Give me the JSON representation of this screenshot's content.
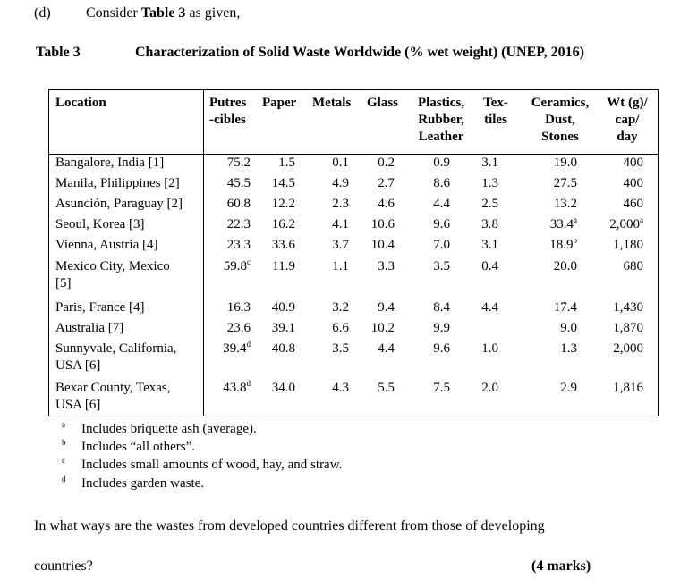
{
  "question": {
    "label": "(d)",
    "intro_prefix": "Consider ",
    "intro_bold": "Table 3",
    "intro_suffix": " as given,"
  },
  "table": {
    "label": "Table 3",
    "title": "Characterization of Solid Waste Worldwide (% wet weight) (UNEP, 2016)",
    "headers": {
      "location": "Location",
      "putres_1": "Putres",
      "putres_2": "-cibles",
      "paper": "Paper",
      "metals": "Metals",
      "glass": "Glass",
      "plastics_1": "Plastics,",
      "plastics_2": "Rubber,",
      "plastics_3": "Leather",
      "textiles_1": "Tex-",
      "textiles_2": "tiles",
      "ceramics_1": "Ceramics,",
      "ceramics_2": "Dust,",
      "ceramics_3": "Stones",
      "wt_1": "Wt (g)/",
      "wt_2": "cap/",
      "wt_3": "day"
    },
    "rows": [
      {
        "loc1": "Bangalore, India [1]",
        "loc2": "",
        "putres": "75.2",
        "putres_note": "",
        "paper": "1.5",
        "metals": "0.1",
        "glass": "0.2",
        "plastics": "0.9",
        "textiles": "3.1",
        "ceramics": "19.0",
        "ceramics_note": "",
        "wt": "400",
        "wt_note": ""
      },
      {
        "loc1": "Manila, Philippines [2]",
        "loc2": "",
        "putres": "45.5",
        "putres_note": "",
        "paper": "14.5",
        "metals": "4.9",
        "glass": "2.7",
        "plastics": "8.6",
        "textiles": "1.3",
        "ceramics": "27.5",
        "ceramics_note": "",
        "wt": "400",
        "wt_note": ""
      },
      {
        "loc1": "Asunción, Paraguay [2]",
        "loc2": "",
        "putres": "60.8",
        "putres_note": "",
        "paper": "12.2",
        "metals": "2.3",
        "glass": "4.6",
        "plastics": "4.4",
        "textiles": "2.5",
        "ceramics": "13.2",
        "ceramics_note": "",
        "wt": "460",
        "wt_note": ""
      },
      {
        "loc1": "Seoul, Korea [3]",
        "loc2": "",
        "putres": "22.3",
        "putres_note": "",
        "paper": "16.2",
        "metals": "4.1",
        "glass": "10.6",
        "plastics": "9.6",
        "textiles": "3.8",
        "ceramics": "33.4",
        "ceramics_note": "a",
        "wt": "2,000",
        "wt_note": "a"
      },
      {
        "loc1": "Vienna, Austria [4]",
        "loc2": "",
        "putres": "23.3",
        "putres_note": "",
        "paper": "33.6",
        "metals": "3.7",
        "glass": "10.4",
        "plastics": "7.0",
        "textiles": "3.1",
        "ceramics": "18.9",
        "ceramics_note": "b",
        "wt": "1,180",
        "wt_note": ""
      },
      {
        "loc1": "Mexico City, Mexico",
        "loc2": "[5]",
        "putres": "59.8",
        "putres_note": "c",
        "paper": "11.9",
        "metals": "1.1",
        "glass": "3.3",
        "plastics": "3.5",
        "textiles": "0.4",
        "ceramics": "20.0",
        "ceramics_note": "",
        "wt": "680",
        "wt_note": ""
      },
      {
        "loc1": "Paris, France [4]",
        "loc2": "",
        "putres": "16.3",
        "putres_note": "",
        "paper": "40.9",
        "metals": "3.2",
        "glass": "9.4",
        "plastics": "8.4",
        "textiles": "4.4",
        "ceramics": "17.4",
        "ceramics_note": "",
        "wt": "1,430",
        "wt_note": ""
      },
      {
        "loc1": "Australia [7]",
        "loc2": "",
        "putres": "23.6",
        "putres_note": "",
        "paper": "39.1",
        "metals": "6.6",
        "glass": "10.2",
        "plastics": "9.9",
        "textiles": "",
        "ceramics": "9.0",
        "ceramics_note": "",
        "wt": "1,870",
        "wt_note": ""
      },
      {
        "loc1": "Sunnyvale, California,",
        "loc2": "USA [6]",
        "putres": "39.4",
        "putres_note": "d",
        "paper": "40.8",
        "metals": "3.5",
        "glass": "4.4",
        "plastics": "9.6",
        "textiles": "1.0",
        "ceramics": "1.3",
        "ceramics_note": "",
        "wt": "2,000",
        "wt_note": ""
      },
      {
        "loc1": "Bexar County, Texas,",
        "loc2": "USA [6]",
        "putres": "43.8",
        "putres_note": "d",
        "paper": "34.0",
        "metals": "4.3",
        "glass": "5.5",
        "plastics": "7.5",
        "textiles": "2.0",
        "ceramics": "2.9",
        "ceramics_note": "",
        "wt": "1,816",
        "wt_note": ""
      }
    ],
    "footnotes": [
      {
        "mark": "a",
        "text": "Includes briquette ash (average)."
      },
      {
        "mark": "b",
        "text": "Includes “all others”."
      },
      {
        "mark": "c",
        "text": "Includes small amounts of wood, hay, and straw."
      },
      {
        "mark": "d",
        "text": "Includes garden waste."
      }
    ]
  },
  "prompt": {
    "line1": "In what ways are the wastes from developed countries different from those of developing",
    "line2": "countries?",
    "marks": "(4 marks)"
  }
}
